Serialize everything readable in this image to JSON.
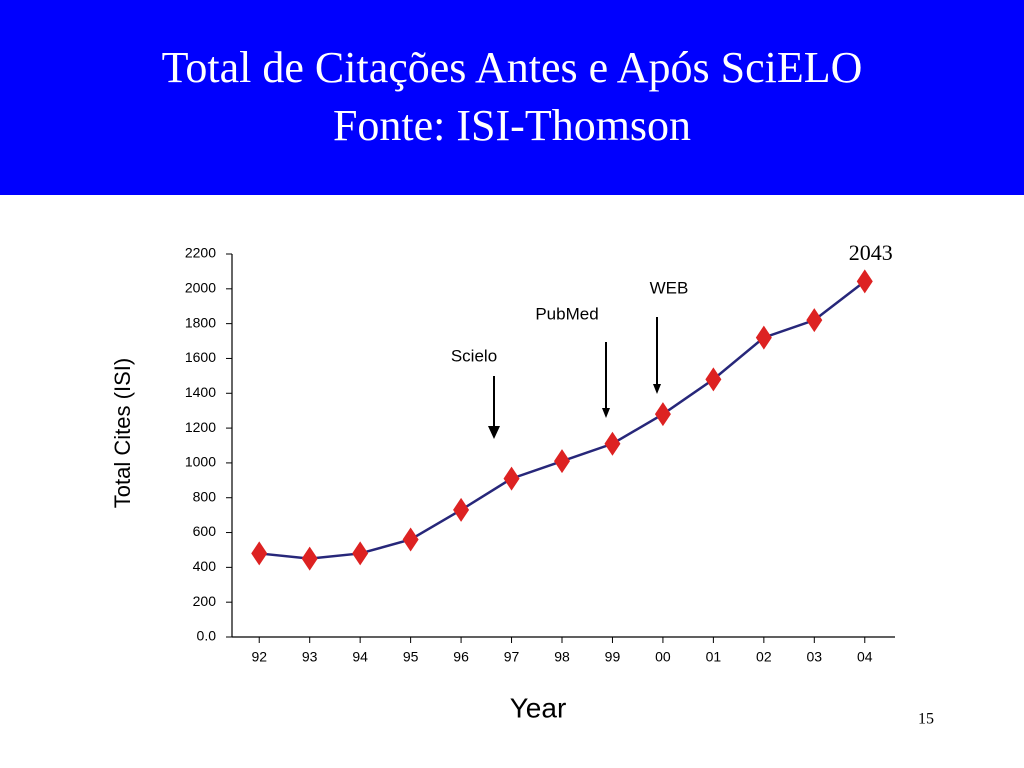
{
  "chart_data": {
    "type": "line",
    "title": "Total de Citações Antes e Após SciELO",
    "subtitle": "Fonte: ISI-Thomson",
    "x_label": "Year",
    "y_label": "Total Cites  (ISI)",
    "categories": [
      "92",
      "93",
      "94",
      "95",
      "96",
      "97",
      "98",
      "99",
      "00",
      "01",
      "02",
      "03",
      "04"
    ],
    "series": [
      {
        "color": "#dd2222",
        "line_color": "#27277a",
        "values": [
          480,
          450,
          480,
          560,
          730,
          910,
          1010,
          1110,
          1280,
          1480,
          1720,
          1820,
          2043
        ]
      }
    ],
    "ylim": [
      0,
      2200
    ],
    "yticks": [
      {
        "value": 0,
        "label": "0.0"
      },
      200,
      400,
      600,
      800,
      1000,
      1200,
      1400,
      1600,
      1800,
      2000,
      2200
    ],
    "grid": false,
    "annotations": [
      "Scielo",
      "PubMed",
      "WEB"
    ]
  },
  "page_number": "15"
}
